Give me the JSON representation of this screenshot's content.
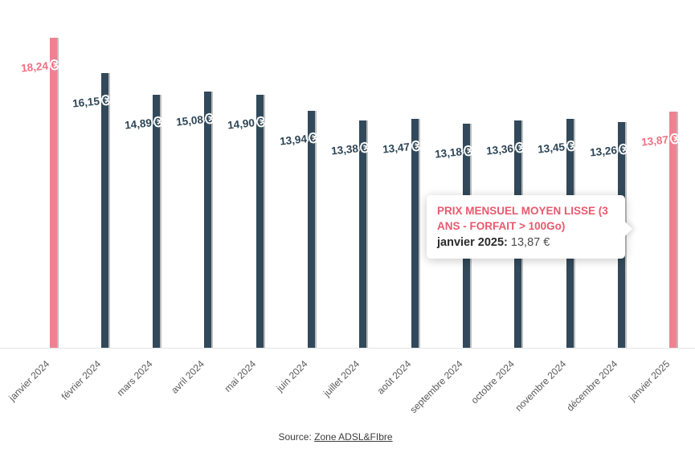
{
  "chart_data": {
    "type": "bar",
    "title": "",
    "xlabel": "",
    "ylabel": "",
    "ylim": [
      0,
      18.24
    ],
    "grid": false,
    "legend": "none",
    "categories": [
      "janvier 2024",
      "février 2024",
      "mars 2024",
      "avril 2024",
      "mai 2024",
      "juin 2024",
      "juillet 2024",
      "août 2024",
      "septembre 2024",
      "octobre 2024",
      "novembre 2024",
      "décembre 2024",
      "janvier 2025"
    ],
    "values": [
      18.24,
      16.15,
      14.89,
      15.08,
      14.9,
      13.94,
      13.38,
      13.47,
      13.18,
      13.36,
      13.45,
      13.26,
      13.87
    ],
    "value_labels": [
      "18,24 €",
      "16,15 €",
      "14,89 €",
      "15,08 €",
      "14,90 €",
      "13,94 €",
      "13,38 €",
      "13,47 €",
      "13,18 €",
      "13,36 €",
      "13,45 €",
      "13,26 €",
      "13,87 €"
    ],
    "highlight_indices": [
      0,
      12
    ],
    "series_name": "Prix mensuel moyen lisse (3 ans - forfait > 100Go)",
    "colors": {
      "bar": "#31495a",
      "bar_highlight": "#ef8191",
      "bar_edge_shadow": "#bdbdbd",
      "label": "#2e4657",
      "label_highlight": "#ee7183",
      "axis_line": "#e4e4e4",
      "tick_label": "#595959"
    }
  },
  "tooltip": {
    "title": "PRIX MENSUEL MOYEN LISSE (3 ANS - FORFAIT > 100Go)",
    "label": "janvier 2025:",
    "value": "13,87 €",
    "title_color": "#e8596d"
  },
  "source": {
    "prefix": "Source: ",
    "link_text": "Zone ADSL&FIbre"
  }
}
